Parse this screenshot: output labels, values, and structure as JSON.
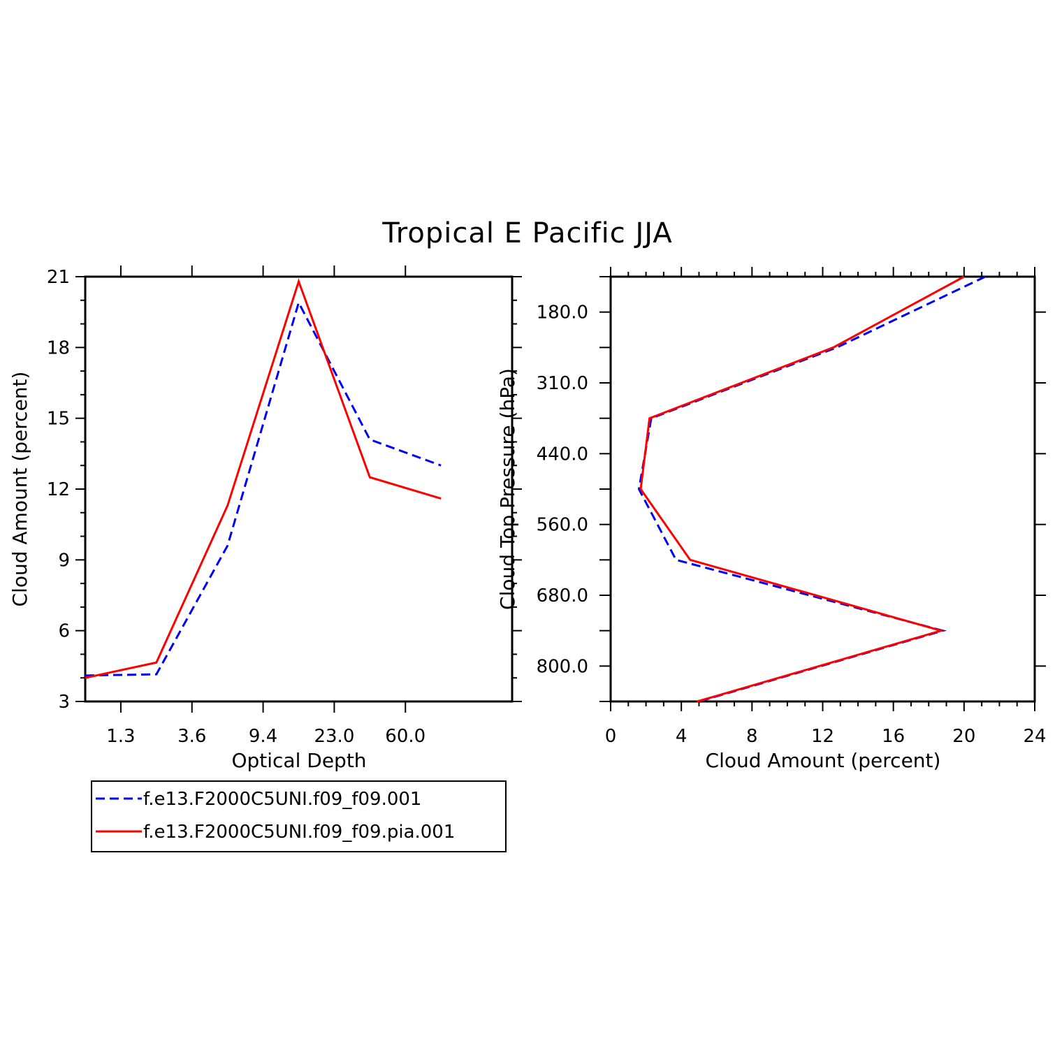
{
  "title": "Tropical E Pacific JJA",
  "colors": {
    "series_1": "#0000ff",
    "series_2": "#ff0000",
    "axis": "#000000"
  },
  "legend": [
    {
      "label": "f.e13.F2000C5UNI.f09_f09.001",
      "color": "#0000ff",
      "style": "dashed"
    },
    {
      "label": "f.e13.F2000C5UNI.f09_f09.pia.001",
      "color": "#ff0000",
      "style": "solid"
    }
  ],
  "chart_data": [
    {
      "type": "line",
      "xlabel": "Optical Depth",
      "ylabel": "Cloud Amount (percent)",
      "x_tick_labels": [
        "1.3",
        "3.6",
        "9.4",
        "23.0",
        "60.0"
      ],
      "x_bins": 6,
      "ylim": [
        3,
        21
      ],
      "y_ticks": [
        3,
        6,
        9,
        12,
        15,
        18,
        21
      ],
      "series": [
        {
          "name": "f.e13.F2000C5UNI.f09_f09.001",
          "style": "dashed",
          "values": [
            [
              0.0,
              4.1
            ],
            [
              1.0,
              4.15
            ],
            [
              2.0,
              9.6
            ],
            [
              3.0,
              19.9
            ],
            [
              4.0,
              14.1
            ],
            [
              5.0,
              13.0
            ]
          ]
        },
        {
          "name": "f.e13.F2000C5UNI.f09_f09.pia.001",
          "style": "solid",
          "values": [
            [
              0.0,
              4.0
            ],
            [
              1.0,
              4.65
            ],
            [
              2.0,
              11.3
            ],
            [
              3.0,
              20.8
            ],
            [
              4.0,
              12.5
            ],
            [
              5.0,
              11.6
            ]
          ]
        }
      ]
    },
    {
      "type": "line",
      "xlabel": "Cloud Amount (percent)",
      "ylabel": "Cloud Top Pressure (hPa)",
      "xlim": [
        0,
        24
      ],
      "x_ticks": [
        0,
        4,
        8,
        12,
        16,
        20,
        24
      ],
      "y_tick_labels": [
        "180.0",
        "310.0",
        "440.0",
        "560.0",
        "680.0",
        "800.0"
      ],
      "y_bins": 12,
      "series": [
        {
          "name": "f.e13.F2000C5UNI.f09_f09.001",
          "style": "dashed",
          "values": [
            [
              21.2,
              0.0
            ],
            [
              12.8,
              2.0
            ],
            [
              2.3,
              4.0
            ],
            [
              1.6,
              6.0
            ],
            [
              3.7,
              8.0
            ],
            [
              18.8,
              10.0
            ],
            [
              5.0,
              12.0
            ]
          ]
        },
        {
          "name": "f.e13.F2000C5UNI.f09_f09.pia.001",
          "style": "solid",
          "values": [
            [
              20.0,
              0.0
            ],
            [
              12.6,
              2.0
            ],
            [
              2.2,
              4.0
            ],
            [
              1.7,
              6.0
            ],
            [
              4.5,
              8.0
            ],
            [
              18.7,
              10.0
            ],
            [
              4.9,
              12.0
            ]
          ]
        }
      ]
    }
  ]
}
